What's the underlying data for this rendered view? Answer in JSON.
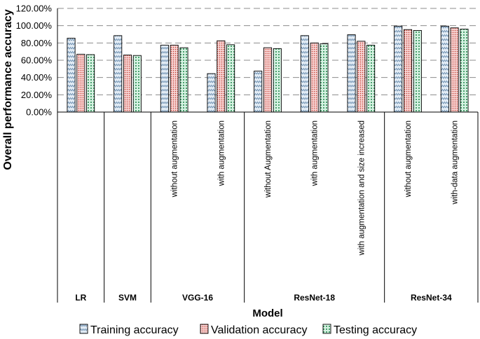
{
  "chart_data": {
    "type": "bar",
    "title": "",
    "xlabel": "Model",
    "ylabel": "Overall performance accuracy",
    "ylim": [
      0,
      120
    ],
    "yticks": [
      "0.00%",
      "20.00%",
      "40.00%",
      "60.00%",
      "80.00%",
      "100.00%",
      "120.00%"
    ],
    "grid": "horizontal dashed",
    "legend_position": "bottom",
    "groups": [
      {
        "label": "LR",
        "span": 1
      },
      {
        "label": "SVM",
        "span": 1
      },
      {
        "label": "VGG-16",
        "span": 2
      },
      {
        "label": "ResNet-18",
        "span": 3
      },
      {
        "label": "ResNet-34",
        "span": 2
      }
    ],
    "categories": [
      "",
      "",
      "without augmentation",
      "with augmentation",
      "without Augmentation",
      "with augmentation",
      "with augmentation and size increased",
      "without augmentation",
      "with-data augmentation"
    ],
    "series": [
      {
        "name": "Training accuracy",
        "color": "#dde8f2",
        "pattern": "zigzag",
        "values": [
          85.5,
          88.5,
          77.5,
          44.5,
          47.5,
          88.5,
          89.5,
          99.5,
          99.5
        ]
      },
      {
        "name": "Validation accuracy",
        "color": "#f4c7c7",
        "pattern": "dots-red",
        "values": [
          67,
          66,
          77.5,
          82.5,
          74.5,
          80,
          82,
          95.5,
          97.5
        ]
      },
      {
        "name": "Testing accuracy",
        "color": "#c9ecd9",
        "pattern": "dots-green",
        "values": [
          66.5,
          65.5,
          74.5,
          78,
          73.5,
          79,
          77.5,
          94.5,
          96
        ]
      }
    ]
  }
}
